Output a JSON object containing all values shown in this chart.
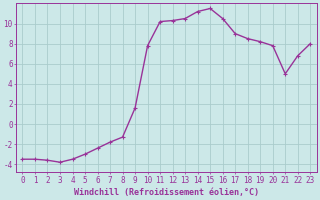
{
  "x": [
    0,
    1,
    2,
    3,
    4,
    5,
    6,
    7,
    8,
    9,
    10,
    11,
    12,
    13,
    14,
    15,
    16,
    17,
    18,
    19,
    20,
    21,
    22,
    23
  ],
  "y": [
    -3.5,
    -3.5,
    -3.6,
    -3.8,
    -3.5,
    -3.0,
    -2.4,
    -1.8,
    -1.3,
    1.6,
    7.8,
    10.2,
    10.3,
    10.5,
    11.2,
    11.5,
    10.5,
    9.0,
    8.5,
    8.2,
    7.8,
    5.0,
    6.8,
    8.0
  ],
  "line_color": "#993399",
  "marker_color": "#993399",
  "bg_color": "#cce8e8",
  "grid_color": "#aacccc",
  "axis_color": "#993399",
  "xlabel": "Windchill (Refroidissement éolien,°C)",
  "xlim": [
    -0.5,
    23.5
  ],
  "ylim": [
    -4.8,
    12.0
  ],
  "yticks": [
    -4,
    -2,
    0,
    2,
    4,
    6,
    8,
    10
  ],
  "xticks": [
    0,
    1,
    2,
    3,
    4,
    5,
    6,
    7,
    8,
    9,
    10,
    11,
    12,
    13,
    14,
    15,
    16,
    17,
    18,
    19,
    20,
    21,
    22,
    23
  ],
  "xlabel_fontsize": 6.0,
  "tick_fontsize": 5.5,
  "marker_size": 2.5,
  "line_width": 1.0
}
